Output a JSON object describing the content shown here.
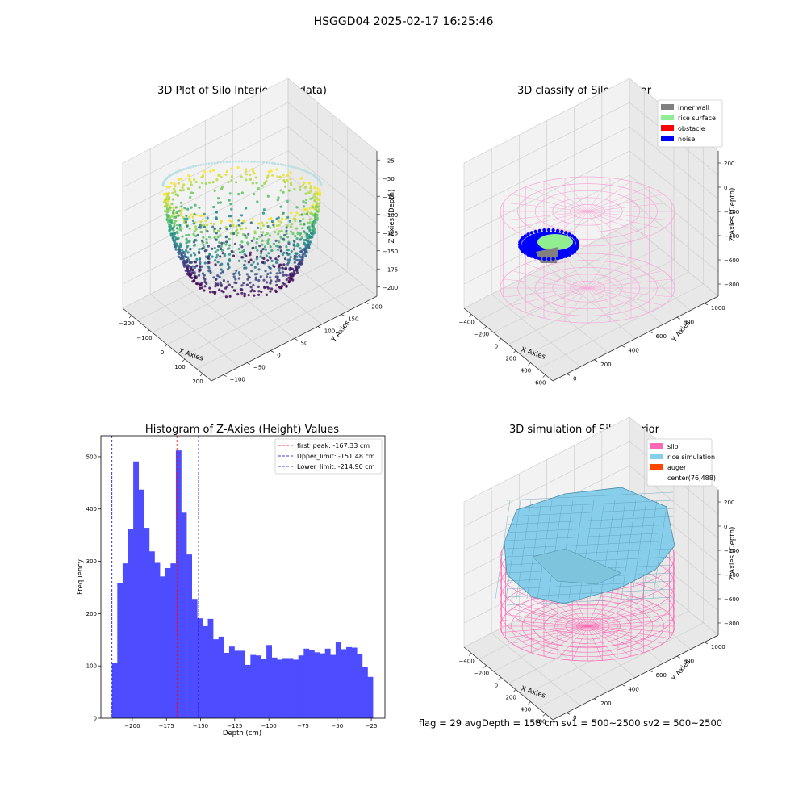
{
  "figure": {
    "suptitle": "HSGGD04 2025-02-17 16:25:46",
    "footer": "flag = 29  avgDepth = 158 cm  sv1 = 500~2500  sv2 = 500~2500"
  },
  "colors": {
    "silo": "#ff69b4",
    "rice_simulation": "#87ceeb",
    "auger": "#ff4500",
    "inner_wall": "#808080",
    "rice_surface": "#90ee90",
    "obstacle": "#ff0000",
    "noise": "#0000ff",
    "histogram_bar": "#4d4dff",
    "first_peak_line": "#ff0000",
    "limit_line": "#0000cc"
  },
  "chart_data": [
    {
      "id": "raw",
      "type": "scatter",
      "projection": "3d",
      "title": "3D Plot of Silo Interior(row data)",
      "xlabel": "X Axies",
      "ylabel": "Y Axies",
      "zlabel": "Z Axies (Depth)",
      "x_ticks": [
        "−200",
        "−100",
        "0",
        "100",
        "200"
      ],
      "y_ticks": [
        "−100",
        "−50",
        "0",
        "50",
        "100",
        "150",
        "200"
      ],
      "z_ticks": [
        "−25",
        "−50",
        "−75",
        "−100",
        "−125",
        "−150",
        "−175",
        "−200"
      ],
      "xlim": [
        -260,
        260
      ],
      "ylim": [
        -120,
        230
      ],
      "zlim": [
        -230,
        -15
      ],
      "colormap": "viridis",
      "grid": true
    },
    {
      "id": "classify",
      "type": "scatter",
      "projection": "3d",
      "title": "3D classify of Silo Interior",
      "xlabel": "X Axies",
      "ylabel": "Y Axies",
      "zlabel": "Z Axies (Depth)",
      "x_ticks": [
        "−400",
        "−200",
        "0",
        "200",
        "400",
        "600"
      ],
      "y_ticks": [
        "0",
        "200",
        "400",
        "600",
        "800",
        "1000"
      ],
      "z_ticks": [
        "200",
        "0",
        "−200",
        "−400",
        "−600",
        "−800"
      ],
      "xlim": [
        -500,
        650
      ],
      "ylim": [
        -50,
        1050
      ],
      "zlim": [
        -900,
        300
      ],
      "legend": [
        "inner wall",
        "rice surface",
        "obstacle",
        "noise"
      ],
      "legend_loc": "upper right",
      "grid": true
    },
    {
      "id": "hist",
      "type": "bar",
      "title": "Histogram of Z-Axies (Height) Values",
      "xlabel": "Depth (cm)",
      "ylabel": "Frequency",
      "xlim": [
        -223,
        -15
      ],
      "ylim": [
        0,
        540
      ],
      "x_ticks": [
        -200,
        -175,
        -150,
        -125,
        -100,
        -75,
        -50,
        -25
      ],
      "x_tick_labels": [
        "−200",
        "−175",
        "−150",
        "−125",
        "−100",
        "−75",
        "−50",
        "−25"
      ],
      "y_ticks": [
        0,
        100,
        200,
        300,
        400,
        500
      ],
      "bin_start": -214.9,
      "bin_width": 3.9,
      "values": [
        105,
        258,
        296,
        361,
        491,
        437,
        364,
        319,
        297,
        271,
        287,
        296,
        512,
        393,
        313,
        228,
        191,
        176,
        190,
        151,
        156,
        125,
        137,
        129,
        129,
        102,
        121,
        120,
        113,
        140,
        116,
        112,
        115,
        115,
        112,
        120,
        133,
        130,
        126,
        124,
        133,
        121,
        145,
        132,
        136,
        135,
        122,
        98,
        79
      ],
      "vlines": [
        {
          "x": -167.33,
          "label": "first_peak: -167.33 cm",
          "color": "#ff0000"
        },
        {
          "x": -151.48,
          "label": "Upper_limit: -151.48 cm",
          "color": "#0000cc"
        },
        {
          "x": -214.9,
          "label": "Lower_limit: -214.90 cm",
          "color": "#0000cc"
        }
      ],
      "legend_loc": "upper right"
    },
    {
      "id": "sim",
      "type": "surface",
      "projection": "3d",
      "title": "3D simulation of Silo Interior",
      "xlabel": "X Axies",
      "ylabel": "Y Axies",
      "zlabel": "Z Axies (Depth)",
      "x_ticks": [
        "−400",
        "−200",
        "0",
        "200",
        "400",
        "600"
      ],
      "y_ticks": [
        "0",
        "200",
        "400",
        "600",
        "800",
        "1000"
      ],
      "z_ticks": [
        "200",
        "0",
        "−200",
        "−400",
        "−600",
        "−800"
      ],
      "xlim": [
        -500,
        650
      ],
      "ylim": [
        -50,
        1050
      ],
      "zlim": [
        -900,
        300
      ],
      "legend": [
        "silo",
        "rice simulation",
        "auger",
        "center(76,488)"
      ],
      "legend_loc": "upper right",
      "grid": true
    }
  ]
}
